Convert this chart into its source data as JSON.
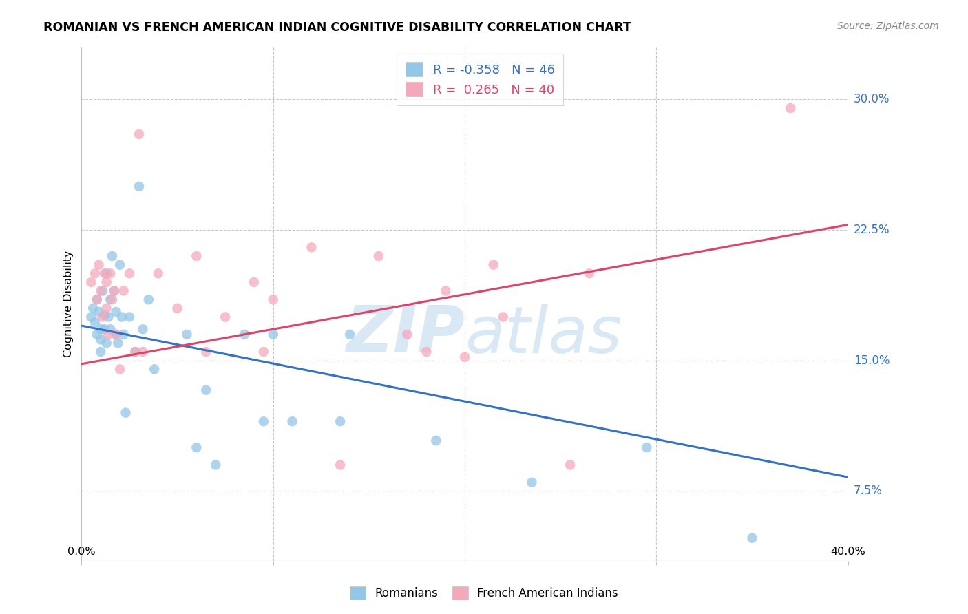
{
  "title": "ROMANIAN VS FRENCH AMERICAN INDIAN COGNITIVE DISABILITY CORRELATION CHART",
  "source": "Source: ZipAtlas.com",
  "ylabel": "Cognitive Disability",
  "ytick_labels": [
    "7.5%",
    "15.0%",
    "22.5%",
    "30.0%"
  ],
  "ytick_values": [
    0.075,
    0.15,
    0.225,
    0.3
  ],
  "xlim": [
    0.0,
    0.4
  ],
  "ylim": [
    0.035,
    0.33
  ],
  "legend_blue_r": "R = -0.358",
  "legend_blue_n": "N = 46",
  "legend_pink_r": "R =  0.265",
  "legend_pink_n": "N = 40",
  "blue_color": "#93c6e8",
  "pink_color": "#f5a8ba",
  "blue_line_color": "#3472c8",
  "pink_line_color": "#e0436a",
  "watermark_zip": "ZIP",
  "watermark_atlas": "atlas",
  "blue_line_y0": 0.17,
  "blue_line_y1": 0.083,
  "pink_line_y0": 0.148,
  "pink_line_y1": 0.228,
  "romanian_x": [
    0.005,
    0.006,
    0.007,
    0.008,
    0.008,
    0.009,
    0.01,
    0.01,
    0.01,
    0.011,
    0.012,
    0.012,
    0.013,
    0.013,
    0.014,
    0.015,
    0.015,
    0.016,
    0.017,
    0.018,
    0.018,
    0.019,
    0.02,
    0.021,
    0.022,
    0.023,
    0.025,
    0.028,
    0.03,
    0.032,
    0.035,
    0.038,
    0.055,
    0.06,
    0.065,
    0.07,
    0.085,
    0.095,
    0.1,
    0.11,
    0.135,
    0.14,
    0.185,
    0.235,
    0.295,
    0.35
  ],
  "romanian_y": [
    0.175,
    0.18,
    0.172,
    0.185,
    0.165,
    0.178,
    0.168,
    0.162,
    0.155,
    0.19,
    0.176,
    0.168,
    0.2,
    0.16,
    0.175,
    0.185,
    0.168,
    0.21,
    0.19,
    0.165,
    0.178,
    0.16,
    0.205,
    0.175,
    0.165,
    0.12,
    0.175,
    0.155,
    0.25,
    0.168,
    0.185,
    0.145,
    0.165,
    0.1,
    0.133,
    0.09,
    0.165,
    0.115,
    0.165,
    0.115,
    0.115,
    0.165,
    0.104,
    0.08,
    0.1,
    0.048
  ],
  "french_x": [
    0.005,
    0.007,
    0.008,
    0.009,
    0.01,
    0.011,
    0.012,
    0.013,
    0.013,
    0.014,
    0.015,
    0.016,
    0.017,
    0.018,
    0.02,
    0.022,
    0.025,
    0.028,
    0.03,
    0.032,
    0.04,
    0.05,
    0.06,
    0.065,
    0.075,
    0.09,
    0.095,
    0.1,
    0.12,
    0.135,
    0.155,
    0.17,
    0.18,
    0.19,
    0.2,
    0.215,
    0.22,
    0.255,
    0.265,
    0.37
  ],
  "french_y": [
    0.195,
    0.2,
    0.185,
    0.205,
    0.19,
    0.175,
    0.2,
    0.195,
    0.18,
    0.165,
    0.2,
    0.185,
    0.19,
    0.165,
    0.145,
    0.19,
    0.2,
    0.155,
    0.28,
    0.155,
    0.2,
    0.18,
    0.21,
    0.155,
    0.175,
    0.195,
    0.155,
    0.185,
    0.215,
    0.09,
    0.21,
    0.165,
    0.155,
    0.19,
    0.152,
    0.205,
    0.175,
    0.09,
    0.2,
    0.295
  ]
}
